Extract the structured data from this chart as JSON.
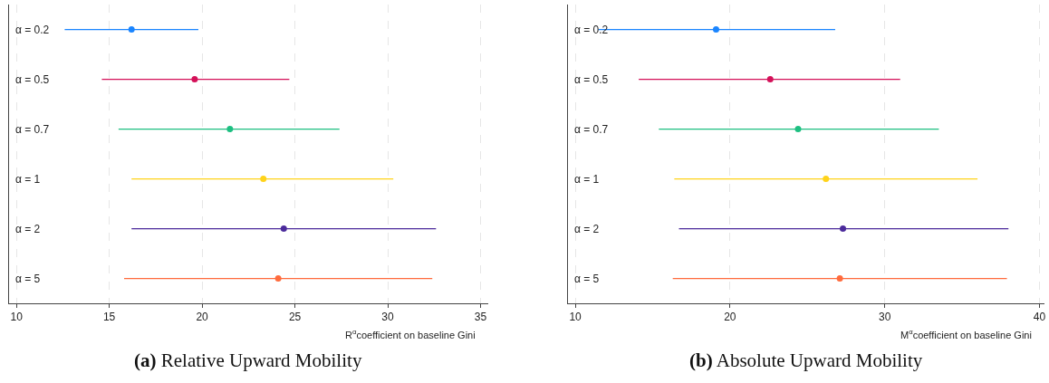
{
  "chart_data": [
    {
      "type": "scatter",
      "orientation": "horizontal",
      "title": "(a) Relative Upward Mobility",
      "xlabel": "R$^{α}$coefficient on baseline Gini",
      "categories": [
        "α = 0.2",
        "α = 0.5",
        "α = 0.7",
        "α = 1",
        "α = 2",
        "α = 5"
      ],
      "values": [
        16.2,
        19.6,
        21.5,
        23.3,
        24.4,
        24.1
      ],
      "errors": [
        [
          12.6,
          19.8
        ],
        [
          14.6,
          24.7
        ],
        [
          15.5,
          27.4
        ],
        [
          16.2,
          30.3
        ],
        [
          16.2,
          32.6
        ],
        [
          15.8,
          32.4
        ]
      ],
      "colors": [
        "#1a85ff",
        "#d41159",
        "#1dbf81",
        "#ffd31a",
        "#4b2a9b",
        "#ff6b3d"
      ],
      "xlim": [
        9.6,
        35.4
      ],
      "xticks": [
        10,
        15,
        20,
        25,
        30,
        35
      ],
      "grid": "x",
      "marker": "circle"
    },
    {
      "type": "scatter",
      "orientation": "horizontal",
      "title": "(b) Absolute Upward Mobility",
      "xlabel": "M$^{α}$coefficient on baseline Gini",
      "categories": [
        "α = 0.2",
        "α = 0.5",
        "α = 0.7",
        "α = 1",
        "α = 2",
        "α = 5"
      ],
      "values": [
        19.1,
        22.6,
        24.4,
        26.2,
        27.3,
        27.1
      ],
      "errors": [
        [
          11.5,
          26.8
        ],
        [
          14.1,
          31.0
        ],
        [
          15.4,
          33.5
        ],
        [
          16.4,
          36.0
        ],
        [
          16.7,
          38.0
        ],
        [
          16.3,
          37.9
        ]
      ],
      "colors": [
        "#1a85ff",
        "#d41159",
        "#1dbf81",
        "#ffd31a",
        "#4b2a9b",
        "#ff6b3d"
      ],
      "xlim": [
        9.5,
        40.3
      ],
      "xticks": [
        10,
        20,
        30,
        40
      ],
      "grid": "x",
      "marker": "circle"
    }
  ]
}
